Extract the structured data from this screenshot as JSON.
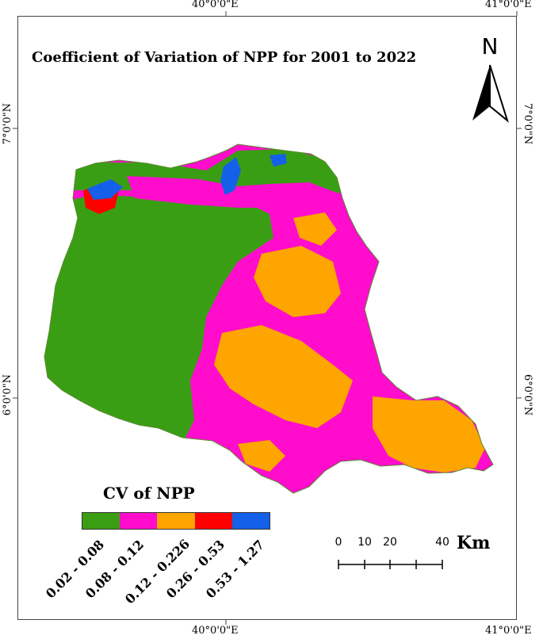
{
  "map": {
    "title": "Coefficient of Variation  of NPP  for 2001 to 2022",
    "coords": {
      "top_lon_1": "40°0'0\"E",
      "top_lon_2": "41°0'0\"E",
      "bottom_lon_1": "40°0'0\"E",
      "bottom_lon_2": "41°0'0\"E",
      "left_lat_1": "7°0'0\"N",
      "left_lat_2": "6°0'0\"N",
      "right_lat_1": "7°0'0\"N",
      "right_lat_2": "6°0'0\"N"
    },
    "north_label": "N"
  },
  "legend": {
    "title": "CV of NPP",
    "classes": [
      {
        "label": "0.02 - 0.08",
        "color": "#3a9e14"
      },
      {
        "label": "0.08 - 0.12",
        "color": "#ff0ccc"
      },
      {
        "label": "0.12 - 0.226",
        "color": "#ffa500"
      },
      {
        "label": "0.26 - 0.53",
        "color": "#ff0000"
      },
      {
        "label": "0.53 - 1.27",
        "color": "#1560e8"
      }
    ]
  },
  "scale": {
    "ticks": [
      "0",
      "10",
      "20",
      "40"
    ],
    "unit": "Km"
  }
}
